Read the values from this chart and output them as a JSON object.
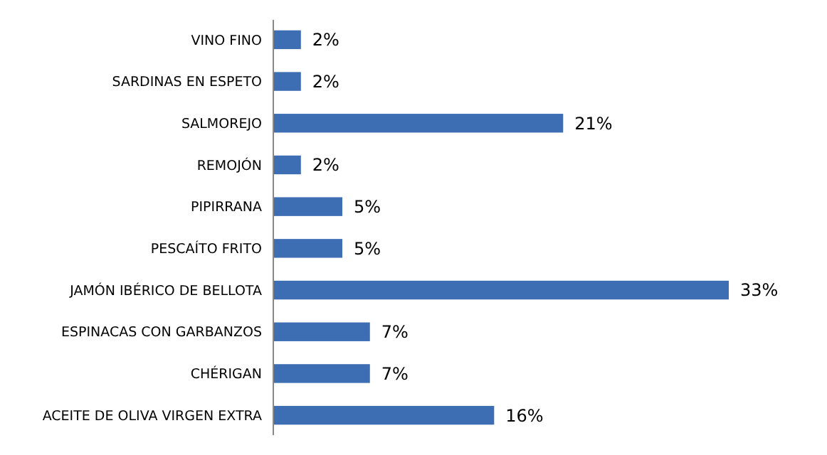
{
  "chart_data": {
    "type": "bar",
    "orientation": "horizontal",
    "categories": [
      "VINO FINO",
      "SARDINAS EN ESPETO",
      "SALMOREJO",
      "REMOJÓN",
      "PIPIRRANA",
      "PESCAÍTO FRITO",
      "JAMÓN IBÉRICO DE BELLOTA",
      "ESPINACAS CON GARBANZOS",
      "CHÉRIGAN",
      "ACEITE DE OLIVA VIRGEN EXTRA"
    ],
    "values": [
      2,
      2,
      21,
      2,
      5,
      5,
      33,
      7,
      7,
      16
    ],
    "value_labels": [
      "2%",
      "2%",
      "21%",
      "2%",
      "5%",
      "5%",
      "33%",
      "7%",
      "7%",
      "16%"
    ],
    "color": "#3d6eb4"
  }
}
